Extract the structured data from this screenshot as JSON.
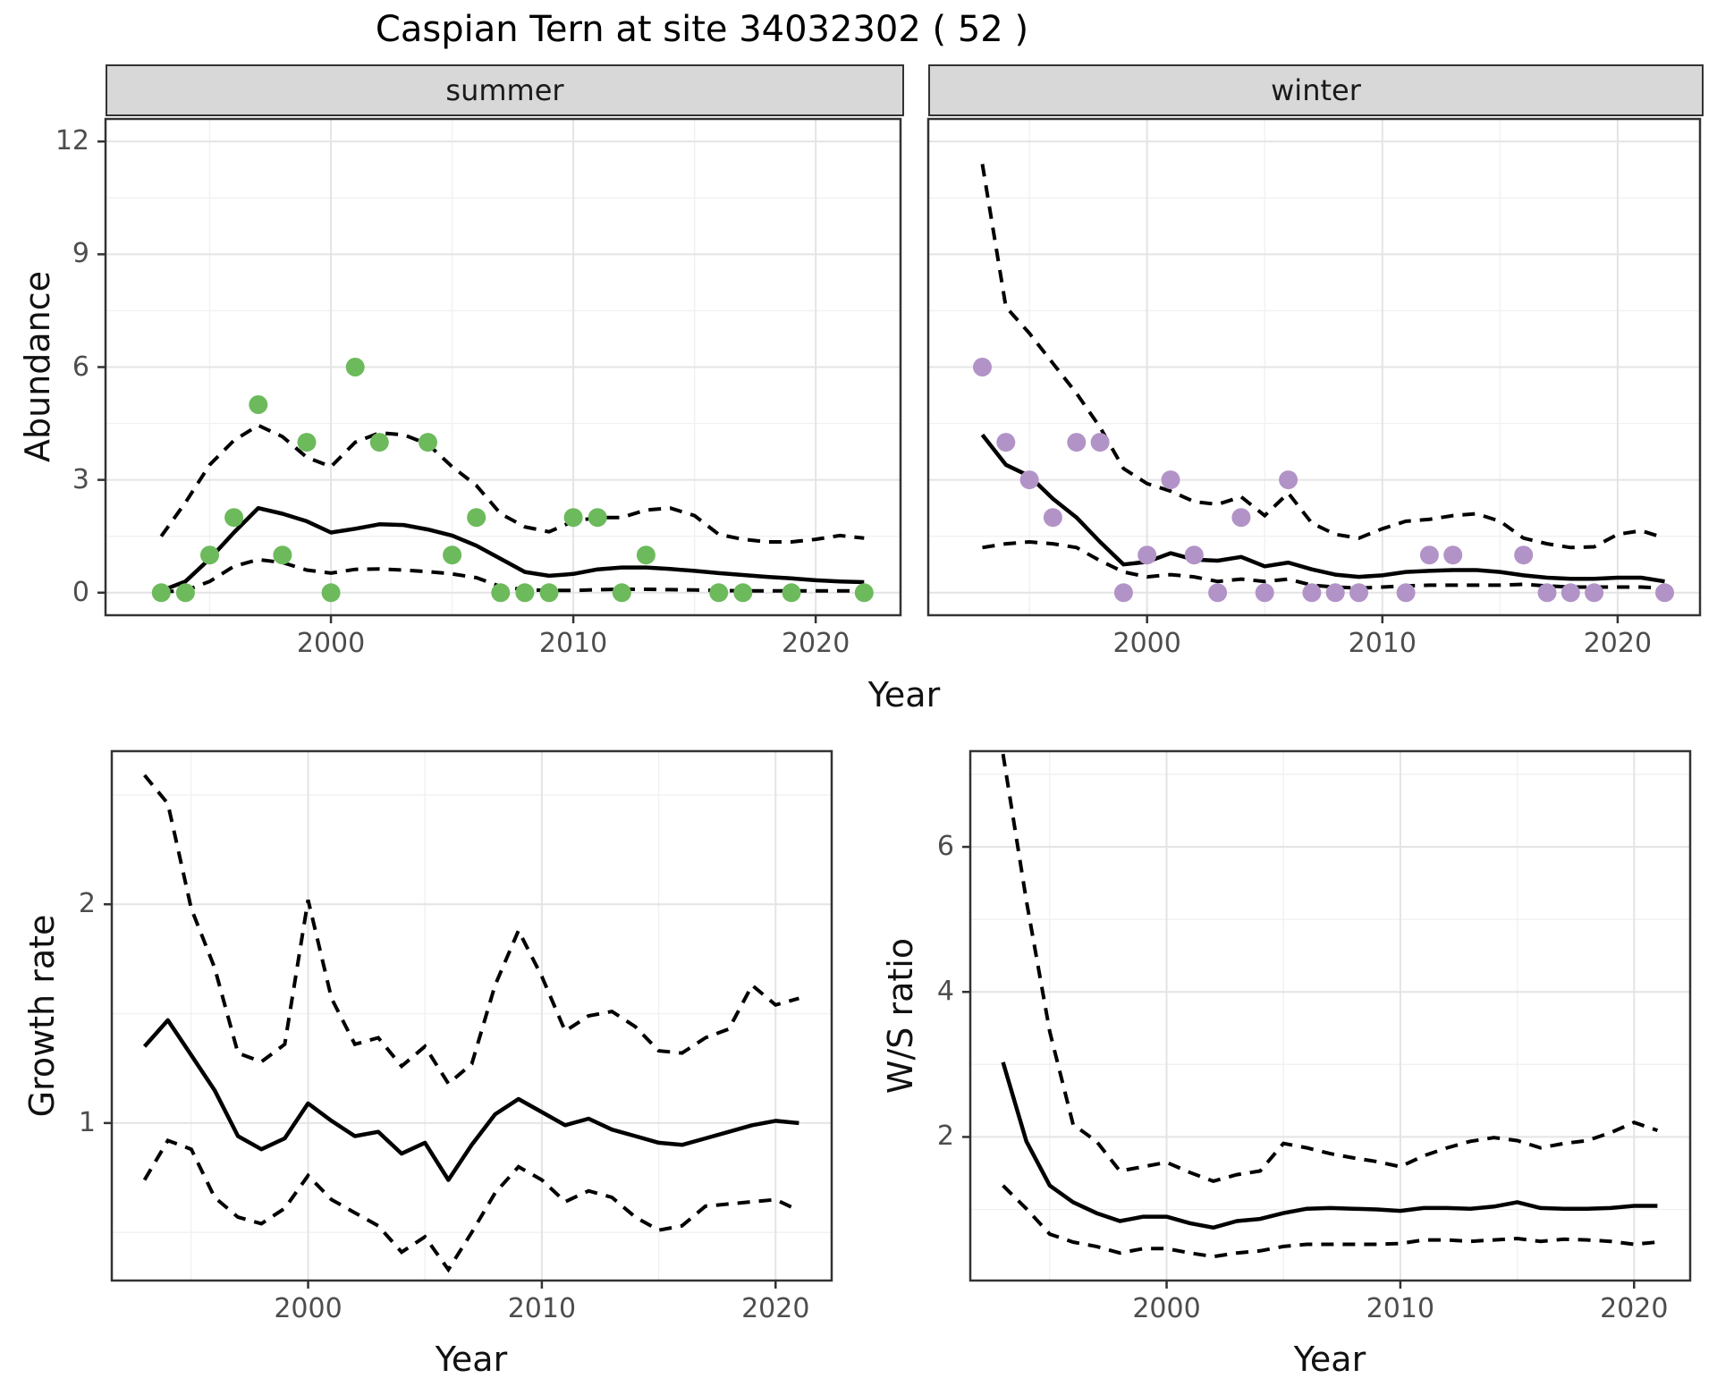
{
  "title": "Caspian Tern at site 34032302 ( 52 )",
  "facets": {
    "summer": "summer",
    "winter": "winter"
  },
  "axis_titles": {
    "abundance": "Abundance",
    "growth": "Growth rate",
    "ws": "W/S ratio",
    "year": "Year"
  },
  "colors": {
    "summer_point": "#6cba5c",
    "winter_point": "#b293c7",
    "line": "#000000",
    "grid_major": "#e4e4e4",
    "grid_minor": "#f1f1f1",
    "panel_border": "#333333",
    "strip_bg": "#d8d8d8",
    "tick_label": "#4d4d4d"
  },
  "chart_data": [
    {
      "id": "abundance-summer",
      "type": "scatter",
      "facet": "summer",
      "xlabel": "Year",
      "ylabel": "Abundance",
      "xlim": [
        1990.7,
        2023.5
      ],
      "ylim": [
        -0.6,
        12.6
      ],
      "xticks": [
        2000,
        2010,
        2020
      ],
      "xticks_minor": [
        1995,
        2005,
        2015
      ],
      "yticks": [
        0,
        3,
        6,
        9,
        12
      ],
      "yticks_minor": [
        1.5,
        4.5,
        7.5,
        10.5
      ],
      "points": {
        "years": [
          1993,
          1994,
          1995,
          1996,
          1997,
          1998,
          1999,
          2000,
          2001,
          2002,
          2004,
          2005,
          2006,
          2007,
          2008,
          2009,
          2010,
          2011,
          2012,
          2013,
          2016,
          2017,
          2019,
          2022
        ],
        "values": [
          0,
          0,
          1,
          2,
          5,
          1,
          4,
          0,
          6,
          4,
          4,
          1,
          2,
          0,
          0,
          0,
          2,
          2,
          0,
          1,
          0,
          0,
          0,
          0
        ]
      },
      "line_years": [
        1993,
        1994,
        1995,
        1996,
        1997,
        1998,
        1999,
        2000,
        2001,
        2002,
        2003,
        2004,
        2005,
        2006,
        2007,
        2008,
        2009,
        2010,
        2011,
        2012,
        2013,
        2014,
        2015,
        2016,
        2017,
        2018,
        2019,
        2020,
        2021,
        2022
      ],
      "fit": [
        0.05,
        0.3,
        0.9,
        1.6,
        2.25,
        2.1,
        1.9,
        1.6,
        1.7,
        1.82,
        1.8,
        1.68,
        1.52,
        1.25,
        0.9,
        0.55,
        0.45,
        0.5,
        0.62,
        0.67,
        0.67,
        0.63,
        0.58,
        0.52,
        0.47,
        0.42,
        0.38,
        0.33,
        0.3,
        0.28
      ],
      "upper": [
        1.5,
        2.4,
        3.4,
        4.05,
        4.45,
        4.15,
        3.6,
        3.35,
        4.0,
        4.25,
        4.2,
        3.95,
        3.35,
        2.85,
        2.1,
        1.75,
        1.62,
        1.9,
        2.0,
        2.0,
        2.2,
        2.25,
        2.05,
        1.55,
        1.42,
        1.35,
        1.35,
        1.42,
        1.52,
        1.45
      ],
      "lower": [
        0.02,
        0.06,
        0.3,
        0.7,
        0.88,
        0.8,
        0.6,
        0.52,
        0.62,
        0.63,
        0.6,
        0.56,
        0.5,
        0.4,
        0.16,
        0.08,
        0.06,
        0.06,
        0.08,
        0.09,
        0.09,
        0.08,
        0.07,
        0.06,
        0.05,
        0.05,
        0.05,
        0.05,
        0.05,
        0.05
      ]
    },
    {
      "id": "abundance-winter",
      "type": "scatter",
      "facet": "winter",
      "xlabel": "Year",
      "ylabel": "Abundance",
      "xlim": [
        1990.7,
        2023.5
      ],
      "ylim": [
        -0.6,
        12.6
      ],
      "xticks": [
        2000,
        2010,
        2020
      ],
      "xticks_minor": [
        1995,
        2005,
        2015
      ],
      "yticks": [
        0,
        3,
        6,
        9,
        12
      ],
      "yticks_minor": [
        1.5,
        4.5,
        7.5,
        10.5
      ],
      "points": {
        "years": [
          1993,
          1994,
          1995,
          1996,
          1997,
          1998,
          1999,
          2000,
          2001,
          2002,
          2003,
          2004,
          2005,
          2006,
          2007,
          2008,
          2009,
          2011,
          2012,
          2013,
          2016,
          2017,
          2018,
          2019,
          2022
        ],
        "values": [
          6,
          4,
          3,
          2,
          4,
          4,
          0,
          1,
          3,
          1,
          0,
          2,
          0,
          3,
          0,
          0,
          0,
          0,
          1,
          1,
          1,
          0,
          0,
          0,
          0
        ]
      },
      "line_years": [
        1993,
        1994,
        1995,
        1996,
        1997,
        1998,
        1999,
        2000,
        2001,
        2002,
        2003,
        2004,
        2005,
        2006,
        2007,
        2008,
        2009,
        2010,
        2011,
        2012,
        2013,
        2014,
        2015,
        2016,
        2017,
        2018,
        2019,
        2020,
        2021,
        2022
      ],
      "fit": [
        4.2,
        3.4,
        3.1,
        2.5,
        2.0,
        1.35,
        0.75,
        0.82,
        1.05,
        0.88,
        0.85,
        0.95,
        0.7,
        0.8,
        0.62,
        0.48,
        0.42,
        0.46,
        0.55,
        0.58,
        0.6,
        0.6,
        0.55,
        0.46,
        0.4,
        0.37,
        0.37,
        0.4,
        0.4,
        0.3
      ],
      "upper": [
        11.4,
        7.6,
        6.9,
        6.1,
        5.3,
        4.4,
        3.3,
        2.9,
        2.7,
        2.42,
        2.35,
        2.55,
        2.05,
        2.65,
        1.85,
        1.55,
        1.45,
        1.7,
        1.9,
        1.95,
        2.05,
        2.1,
        1.9,
        1.45,
        1.3,
        1.2,
        1.22,
        1.55,
        1.65,
        1.45
      ],
      "lower": [
        1.2,
        1.3,
        1.35,
        1.3,
        1.2,
        0.85,
        0.55,
        0.42,
        0.48,
        0.42,
        0.3,
        0.36,
        0.3,
        0.36,
        0.2,
        0.15,
        0.12,
        0.15,
        0.18,
        0.2,
        0.2,
        0.2,
        0.2,
        0.22,
        0.18,
        0.15,
        0.15,
        0.15,
        0.15,
        0.12
      ]
    },
    {
      "id": "growth-rate",
      "type": "line",
      "facet": "",
      "xlabel": "Year",
      "ylabel": "Growth rate",
      "xlim": [
        1991.6,
        2022.4
      ],
      "ylim": [
        0.28,
        2.7
      ],
      "xticks": [
        2000,
        2010,
        2020
      ],
      "xticks_minor": [
        1995,
        2005,
        2015
      ],
      "yticks": [
        1,
        2
      ],
      "yticks_minor": [
        0.5,
        1.5,
        2.5
      ],
      "line_years": [
        1993,
        1994,
        1995,
        1996,
        1997,
        1998,
        1999,
        2000,
        2001,
        2002,
        2003,
        2004,
        2005,
        2006,
        2007,
        2008,
        2009,
        2010,
        2011,
        2012,
        2013,
        2014,
        2015,
        2016,
        2017,
        2018,
        2019,
        2020,
        2021
      ],
      "fit": [
        1.35,
        1.47,
        1.31,
        1.15,
        0.94,
        0.88,
        0.93,
        1.09,
        1.01,
        0.94,
        0.96,
        0.86,
        0.91,
        0.74,
        0.9,
        1.04,
        1.11,
        1.05,
        0.99,
        1.02,
        0.97,
        0.94,
        0.91,
        0.9,
        0.93,
        0.96,
        0.99,
        1.01,
        1.0
      ],
      "upper": [
        2.59,
        2.46,
        1.98,
        1.71,
        1.32,
        1.28,
        1.36,
        2.02,
        1.57,
        1.36,
        1.39,
        1.26,
        1.35,
        1.18,
        1.27,
        1.63,
        1.88,
        1.67,
        1.42,
        1.49,
        1.51,
        1.44,
        1.33,
        1.32,
        1.39,
        1.43,
        1.63,
        1.54,
        1.57
      ],
      "lower": [
        0.74,
        0.92,
        0.88,
        0.66,
        0.57,
        0.54,
        0.61,
        0.76,
        0.65,
        0.59,
        0.53,
        0.41,
        0.48,
        0.33,
        0.5,
        0.68,
        0.8,
        0.74,
        0.64,
        0.69,
        0.66,
        0.57,
        0.51,
        0.53,
        0.62,
        0.63,
        0.64,
        0.65,
        0.6
      ]
    },
    {
      "id": "ws-ratio",
      "type": "line",
      "facet": "",
      "xlabel": "Year",
      "ylabel": "W/S ratio",
      "xlim": [
        1991.6,
        2022.4
      ],
      "ylim": [
        0.02,
        7.32
      ],
      "xticks": [
        2000,
        2010,
        2020
      ],
      "xticks_minor": [
        1995,
        2005,
        2015
      ],
      "yticks": [
        2,
        4,
        6
      ],
      "yticks_minor": [
        1,
        3,
        5,
        7
      ],
      "line_years": [
        1993,
        1994,
        1995,
        1996,
        1997,
        1998,
        1999,
        2000,
        2001,
        2002,
        2003,
        2004,
        2005,
        2006,
        2007,
        2008,
        2009,
        2010,
        2011,
        2012,
        2013,
        2014,
        2015,
        2016,
        2017,
        2018,
        2019,
        2020,
        2021
      ],
      "fit": [
        3.03,
        1.94,
        1.33,
        1.1,
        0.95,
        0.84,
        0.9,
        0.9,
        0.81,
        0.75,
        0.84,
        0.87,
        0.95,
        1.01,
        1.02,
        1.01,
        1.0,
        0.98,
        1.02,
        1.02,
        1.01,
        1.04,
        1.1,
        1.02,
        1.01,
        1.01,
        1.02,
        1.05,
        1.05
      ],
      "upper": [
        7.28,
        5.26,
        3.45,
        2.17,
        1.94,
        1.53,
        1.59,
        1.65,
        1.51,
        1.39,
        1.48,
        1.53,
        1.91,
        1.85,
        1.77,
        1.71,
        1.66,
        1.59,
        1.74,
        1.85,
        1.94,
        1.99,
        1.95,
        1.85,
        1.91,
        1.95,
        2.06,
        2.2,
        2.09
      ],
      "lower": [
        1.33,
        1.01,
        0.66,
        0.55,
        0.49,
        0.4,
        0.46,
        0.46,
        0.4,
        0.35,
        0.4,
        0.43,
        0.49,
        0.52,
        0.52,
        0.52,
        0.52,
        0.53,
        0.58,
        0.58,
        0.56,
        0.58,
        0.6,
        0.56,
        0.59,
        0.58,
        0.56,
        0.52,
        0.55
      ]
    }
  ]
}
